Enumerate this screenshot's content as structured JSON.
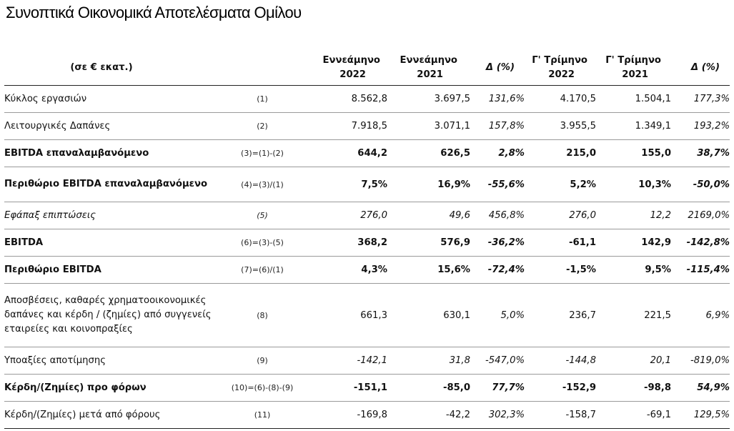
{
  "title": "Συνοπτικά Οικονομικά Αποτελέσματα Ομίλου",
  "table": {
    "unit_label": "(σε € εκατ.)",
    "columns": [
      {
        "line1": "Εννεάμηνο",
        "line2": "2022"
      },
      {
        "line1": "Εννεάμηνο",
        "line2": "2021"
      },
      {
        "line1": "Δ (%)",
        "line2": ""
      },
      {
        "line1": "Γ' Τρίμηνο",
        "line2": "2022"
      },
      {
        "line1": "Γ' Τρίμηνο",
        "line2": "2021"
      },
      {
        "line1": "Δ (%)",
        "line2": ""
      }
    ],
    "rows": [
      {
        "label": "Κύκλος εργασιών",
        "formula": "(1)",
        "v1": "8.562,8",
        "v2": "3.697,5",
        "d1": "131,6%",
        "v3": "4.170,5",
        "v4": "1.504,1",
        "d2": "177,3%"
      },
      {
        "label": "Λειτουργικές Δαπάνες",
        "formula": "(2)",
        "v1": "7.918,5",
        "v2": "3.071,1",
        "d1": "157,8%",
        "v3": "3.955,5",
        "v4": "1.349,1",
        "d2": "193,2%"
      },
      {
        "label": "EBITDA επαναλαμβανόμενο",
        "formula": "(3)=(1)-(2)",
        "v1": "644,2",
        "v2": "626,5",
        "d1": "2,8%",
        "v3": "215,0",
        "v4": "155,0",
        "d2": "38,7%"
      },
      {
        "label": "Περιθώριο EBITDA επαναλαμβανόμενο",
        "formula": "(4)=(3)/(1)",
        "v1": "7,5%",
        "v2": "16,9%",
        "d1": "-55,6%",
        "v3": "5,2%",
        "v4": "10,3%",
        "d2": "-50,0%"
      },
      {
        "label": "Εφάπαξ επιπτώσεις",
        "formula": "(5)",
        "v1": "276,0",
        "v2": "49,6",
        "d1": "456,8%",
        "v3": "276,0",
        "v4": "12,2",
        "d2": "2169,0%"
      },
      {
        "label": "EBITDA",
        "formula": "(6)=(3)-(5)",
        "v1": "368,2",
        "v2": "576,9",
        "d1": "-36,2%",
        "v3": "-61,1",
        "v4": "142,9",
        "d2": "-142,8%"
      },
      {
        "label": "Περιθώριο EBITDA",
        "formula": "(7)=(6)/(1)",
        "v1": "4,3%",
        "v2": "15,6%",
        "d1": "-72,4%",
        "v3": "-1,5%",
        "v4": "9,5%",
        "d2": "-115,4%"
      },
      {
        "label": "Αποσβέσεις, καθαρές χρηματοοικονομικές δαπάνες και κέρδη / (ζημίες)  από συγγενείς εταιρείες και κοινοπραξίες",
        "formula": "(8)",
        "v1": "661,3",
        "v2": "630,1",
        "d1": "5,0%",
        "v3": "236,7",
        "v4": "221,5",
        "d2": "6,9%"
      },
      {
        "label": "Υποαξίες αποτίμησης",
        "formula": "(9)",
        "v1": "-142,1",
        "v2": "31,8",
        "d1": "-547,0%",
        "v3": "-144,8",
        "v4": "20,1",
        "d2": "-819,0%"
      },
      {
        "label": "Κέρδη/(Ζημίες) προ φόρων",
        "formula": "(10)=(6)-(8)-(9)",
        "v1": "-151,1",
        "v2": "-85,0",
        "d1": "77,7%",
        "v3": "-152,9",
        "v4": "-98,8",
        "d2": "54,9%"
      },
      {
        "label": "Κέρδη/(Ζημίες) μετά από φόρους",
        "formula": "(11)",
        "v1": "-169,8",
        "v2": "-42,2",
        "d1": "302,3%",
        "v3": "-158,7",
        "v4": "-69,1",
        "d2": "129,5%"
      }
    ]
  }
}
